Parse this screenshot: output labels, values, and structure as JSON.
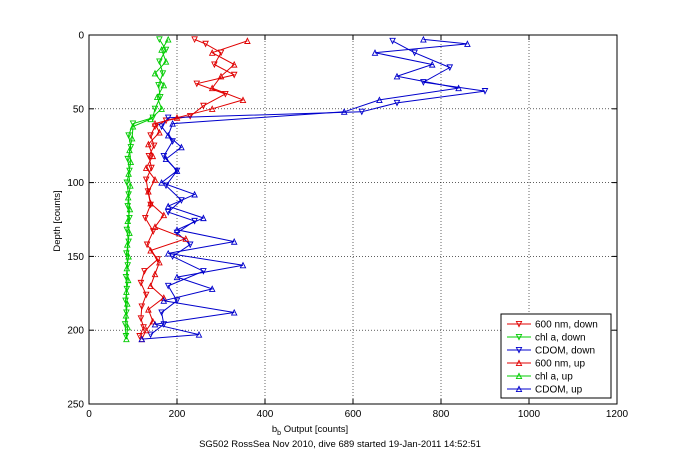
{
  "chart_data": {
    "type": "line",
    "title": "",
    "caption": "SG502 RossSea Nov 2010, dive 689 started 19-Jan-2011 14:52:51",
    "xlabel_main": "b",
    "xlabel_sub": "b",
    "xlabel_rest": " Output [counts]",
    "ylabel": "Depth [counts]",
    "xlim": [
      0,
      1200
    ],
    "ylim": [
      0,
      250
    ],
    "y_reversed": true,
    "grid": true,
    "legend_position": "bottom-right",
    "xticks": [
      "0",
      "200",
      "400",
      "600",
      "800",
      "1000",
      "1200"
    ],
    "yticks": [
      "0",
      "50",
      "100",
      "150",
      "200",
      "250"
    ],
    "series": [
      {
        "name": "600 nm, down",
        "color": "#e00000",
        "marker": "down",
        "points": [
          [
            240,
            3
          ],
          [
            265,
            6
          ],
          [
            300,
            12
          ],
          [
            285,
            20
          ],
          [
            330,
            27
          ],
          [
            245,
            33
          ],
          [
            310,
            40
          ],
          [
            260,
            48
          ],
          [
            230,
            55
          ],
          [
            175,
            58
          ],
          [
            150,
            62
          ],
          [
            140,
            68
          ],
          [
            148,
            75
          ],
          [
            136,
            82
          ],
          [
            142,
            90
          ],
          [
            130,
            98
          ],
          [
            134,
            106
          ],
          [
            140,
            115
          ],
          [
            128,
            124
          ],
          [
            146,
            133
          ],
          [
            132,
            142
          ],
          [
            156,
            152
          ],
          [
            126,
            160
          ],
          [
            118,
            168
          ],
          [
            130,
            176
          ],
          [
            120,
            184
          ],
          [
            118,
            192
          ],
          [
            124,
            198
          ],
          [
            115,
            204
          ]
        ]
      },
      {
        "name": "chl a, down",
        "color": "#00cc00",
        "marker": "down",
        "points": [
          [
            160,
            3
          ],
          [
            175,
            10
          ],
          [
            160,
            18
          ],
          [
            168,
            26
          ],
          [
            158,
            34
          ],
          [
            162,
            42
          ],
          [
            150,
            50
          ],
          [
            145,
            56
          ],
          [
            100,
            60
          ],
          [
            90,
            68
          ],
          [
            95,
            76
          ],
          [
            88,
            84
          ],
          [
            92,
            92
          ],
          [
            86,
            100
          ],
          [
            90,
            108
          ],
          [
            88,
            116
          ],
          [
            92,
            124
          ],
          [
            86,
            132
          ],
          [
            90,
            140
          ],
          [
            85,
            148
          ],
          [
            88,
            156
          ],
          [
            84,
            164
          ],
          [
            86,
            172
          ],
          [
            83,
            180
          ],
          [
            85,
            188
          ],
          [
            82,
            196
          ],
          [
            84,
            204
          ]
        ]
      },
      {
        "name": "CDOM, down",
        "color": "#0000cc",
        "marker": "down",
        "points": [
          [
            690,
            4
          ],
          [
            740,
            12
          ],
          [
            820,
            22
          ],
          [
            760,
            32
          ],
          [
            900,
            38
          ],
          [
            700,
            46
          ],
          [
            620,
            52
          ],
          [
            180,
            56
          ],
          [
            165,
            62
          ],
          [
            190,
            72
          ],
          [
            170,
            82
          ],
          [
            200,
            92
          ],
          [
            175,
            102
          ],
          [
            210,
            112
          ],
          [
            180,
            120
          ],
          [
            240,
            126
          ],
          [
            200,
            134
          ],
          [
            230,
            142
          ],
          [
            190,
            150
          ],
          [
            260,
            160
          ],
          [
            180,
            170
          ],
          [
            200,
            180
          ],
          [
            165,
            188
          ],
          [
            170,
            196
          ],
          [
            140,
            203
          ]
        ]
      },
      {
        "name": "600 nm, up",
        "color": "#e00000",
        "marker": "up",
        "points": [
          [
            120,
            206
          ],
          [
            130,
            200
          ],
          [
            145,
            194
          ],
          [
            135,
            186
          ],
          [
            170,
            178
          ],
          [
            140,
            170
          ],
          [
            150,
            162
          ],
          [
            160,
            154
          ],
          [
            140,
            146
          ],
          [
            220,
            138
          ],
          [
            150,
            130
          ],
          [
            170,
            122
          ],
          [
            140,
            114
          ],
          [
            135,
            106
          ],
          [
            150,
            98
          ],
          [
            130,
            90
          ],
          [
            145,
            82
          ],
          [
            135,
            74
          ],
          [
            160,
            66
          ],
          [
            150,
            60
          ],
          [
            200,
            56
          ],
          [
            280,
            50
          ],
          [
            350,
            44
          ],
          [
            280,
            36
          ],
          [
            300,
            28
          ],
          [
            330,
            20
          ],
          [
            280,
            12
          ],
          [
            360,
            4
          ]
        ]
      },
      {
        "name": "chl a, up",
        "color": "#00cc00",
        "marker": "up",
        "points": [
          [
            85,
            206
          ],
          [
            88,
            198
          ],
          [
            84,
            190
          ],
          [
            87,
            182
          ],
          [
            85,
            174
          ],
          [
            89,
            166
          ],
          [
            86,
            158
          ],
          [
            90,
            150
          ],
          [
            87,
            142
          ],
          [
            92,
            134
          ],
          [
            88,
            126
          ],
          [
            93,
            118
          ],
          [
            89,
            110
          ],
          [
            94,
            102
          ],
          [
            90,
            94
          ],
          [
            95,
            86
          ],
          [
            92,
            78
          ],
          [
            98,
            70
          ],
          [
            100,
            62
          ],
          [
            140,
            57
          ],
          [
            165,
            50
          ],
          [
            155,
            42
          ],
          [
            170,
            34
          ],
          [
            150,
            26
          ],
          [
            175,
            18
          ],
          [
            165,
            10
          ],
          [
            180,
            3
          ]
        ]
      },
      {
        "name": "CDOM, up",
        "color": "#0000cc",
        "marker": "up",
        "points": [
          [
            120,
            206
          ],
          [
            250,
            203
          ],
          [
            150,
            196
          ],
          [
            330,
            188
          ],
          [
            170,
            180
          ],
          [
            280,
            172
          ],
          [
            200,
            164
          ],
          [
            350,
            156
          ],
          [
            180,
            148
          ],
          [
            330,
            140
          ],
          [
            200,
            132
          ],
          [
            260,
            124
          ],
          [
            180,
            116
          ],
          [
            240,
            108
          ],
          [
            165,
            100
          ],
          [
            200,
            92
          ],
          [
            175,
            84
          ],
          [
            210,
            76
          ],
          [
            180,
            68
          ],
          [
            190,
            60
          ],
          [
            580,
            52
          ],
          [
            660,
            44
          ],
          [
            840,
            36
          ],
          [
            700,
            28
          ],
          [
            780,
            20
          ],
          [
            650,
            12
          ],
          [
            860,
            6
          ],
          [
            760,
            3
          ]
        ]
      }
    ]
  }
}
